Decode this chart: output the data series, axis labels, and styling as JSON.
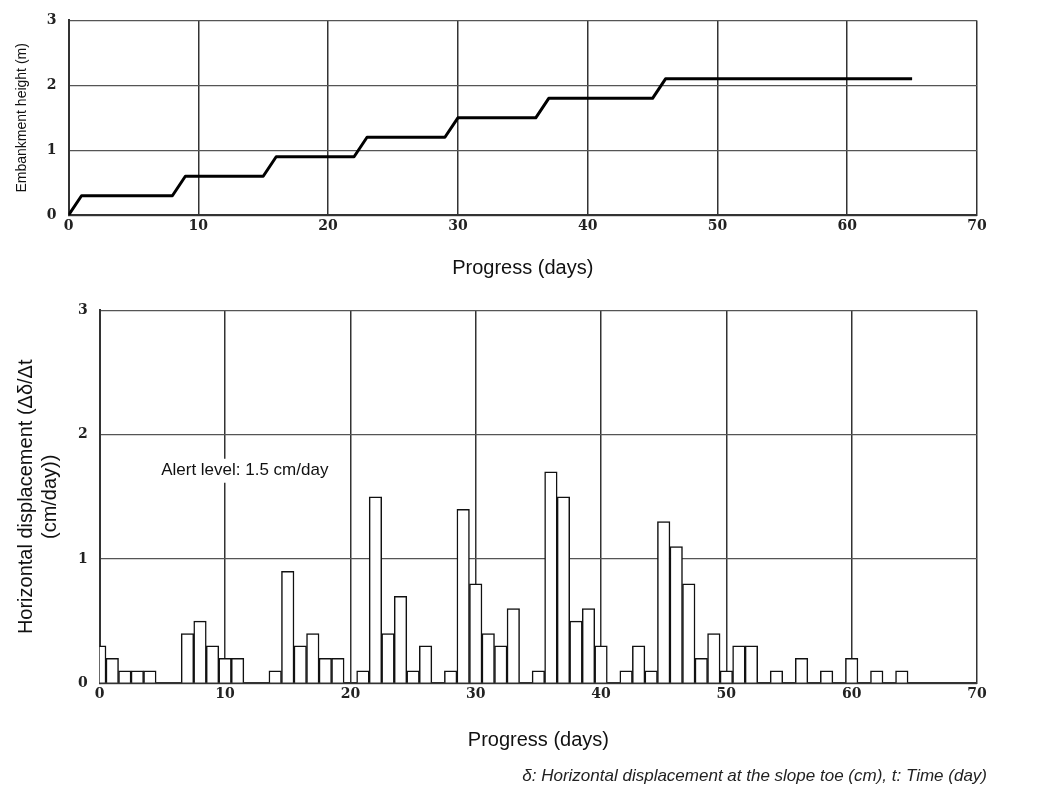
{
  "chart_data": [
    {
      "type": "line",
      "xlabel": "Progress (days)",
      "ylabel": "Embankment height (m)",
      "x": [
        0,
        1,
        8,
        9,
        15,
        16,
        22,
        23,
        29,
        30,
        36,
        37,
        45,
        46,
        65
      ],
      "series": [
        {
          "color": "#000000",
          "values": [
            0,
            0.3,
            0.3,
            0.6,
            0.6,
            0.9,
            0.9,
            1.2,
            1.2,
            1.5,
            1.5,
            1.8,
            1.8,
            2.1,
            2.1
          ]
        }
      ],
      "xlim": [
        0,
        70
      ],
      "xticks": [
        0,
        10,
        20,
        30,
        40,
        50,
        60,
        70
      ],
      "ylim": [
        0,
        3
      ],
      "yticks": [
        0,
        1,
        2,
        3
      ],
      "grid": true,
      "marker": "none"
    },
    {
      "type": "bar",
      "xlabel": "Progress (days)",
      "ylabel": "Horizontal displacement (Δδ/Δt (cm/day))",
      "x": [
        0,
        1,
        2,
        3,
        4,
        7,
        8,
        9,
        10,
        11,
        14,
        15,
        16,
        17,
        18,
        19,
        21,
        22,
        23,
        24,
        25,
        26,
        28,
        29,
        30,
        31,
        32,
        33,
        35,
        36,
        37,
        38,
        39,
        40,
        42,
        43,
        44,
        45,
        46,
        47,
        48,
        49,
        50,
        51,
        52,
        54,
        56,
        58,
        60,
        62,
        64
      ],
      "series": [
        {
          "color": "#ffffff",
          "values": [
            0.3,
            0.2,
            0.1,
            0.1,
            0.1,
            0.4,
            0.5,
            0.3,
            0.2,
            0.2,
            0.1,
            0.9,
            0.3,
            0.4,
            0.2,
            0.2,
            0.1,
            1.5,
            0.4,
            0.7,
            0.1,
            0.3,
            0.1,
            1.4,
            0.8,
            0.4,
            0.3,
            0.6,
            0.1,
            1.7,
            1.5,
            0.5,
            0.6,
            0.3,
            0.1,
            0.3,
            0.1,
            1.3,
            1.1,
            0.8,
            0.2,
            0.4,
            0.1,
            0.3,
            0.3,
            0.1,
            0.2,
            0.1,
            0.2,
            0.1,
            0.1
          ]
        }
      ],
      "xlim": [
        0,
        70
      ],
      "xticks": [
        0,
        10,
        20,
        30,
        40,
        50,
        60,
        70
      ],
      "ylim": [
        0,
        3
      ],
      "yticks": [
        0,
        1,
        2,
        3
      ],
      "grid": true,
      "annotations": [
        "Alert level: 1.5 cm/day",
        "δ: Horizontal displacement at the slope toe (cm), t: Time (day)"
      ]
    }
  ]
}
